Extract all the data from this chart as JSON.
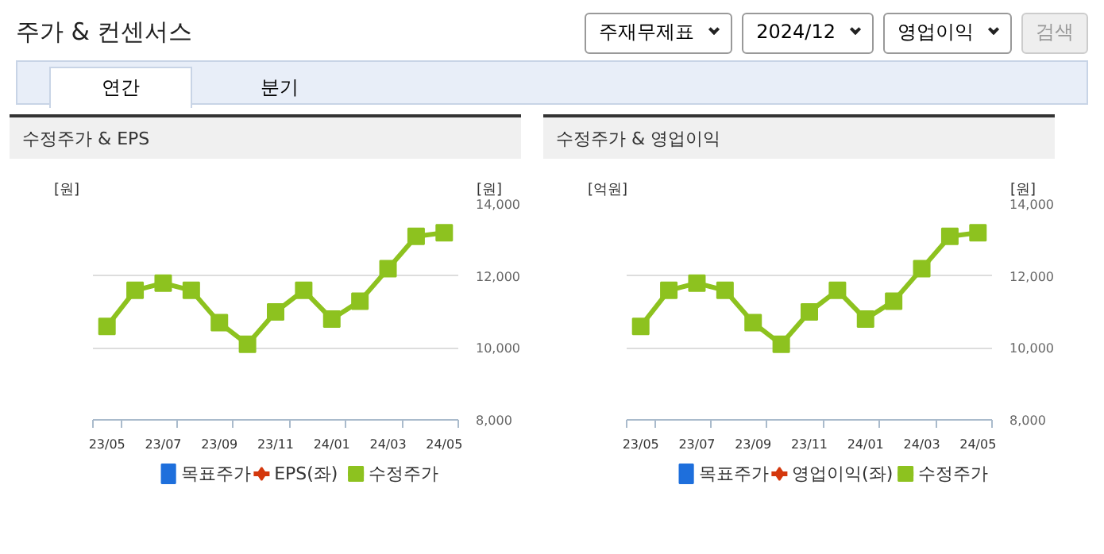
{
  "chart_data": [
    {
      "type": "line",
      "title": "수정주가 & EPS",
      "ylabel": "[원]",
      "y2label": "[원]",
      "annotations": [
        "주가 & 컨센서스",
        "주재무제표",
        "2024/12",
        "영업이익",
        "검색",
        "연간",
        "분기"
      ],
      "categories": [
        "23/05",
        null,
        "23/07",
        null,
        "23/09",
        null,
        "23/11",
        null,
        "24/01",
        null,
        "24/03",
        null,
        "24/05"
      ],
      "series": [
        {
          "name": "목표주가",
          "type": "bar",
          "color": "#1e6fdc",
          "values": [
            null,
            null,
            null,
            null,
            null,
            null,
            null,
            null,
            null,
            null,
            null,
            null,
            null
          ]
        },
        {
          "name": "EPS(좌)",
          "color": "#d4380d",
          "marker": "diamond",
          "values": [
            null,
            null,
            null,
            null,
            null,
            null,
            null,
            null,
            null,
            null,
            null,
            null,
            null
          ]
        },
        {
          "name": "수정주가",
          "color": "#8dc21f",
          "marker": "square",
          "axis": "y2",
          "values": [
            10600,
            11600,
            11800,
            11600,
            10700,
            10100,
            11000,
            11600,
            10800,
            11300,
            12200,
            13100,
            13200
          ]
        }
      ],
      "y2lim": [
        8000,
        14000
      ],
      "y2ticks": [
        {
          "value": 8000,
          "label": "8,000"
        },
        {
          "value": 10000,
          "label": "10,000"
        },
        {
          "value": 12000,
          "label": "12,000"
        },
        {
          "value": 14000,
          "label": "14,000"
        }
      ],
      "grid": "y",
      "legend": "bottom"
    },
    {
      "type": "line",
      "title": "수정주가 & 영업이익",
      "ylabel": "[억원]",
      "y2label": "[원]",
      "categories": [
        "23/05",
        null,
        "23/07",
        null,
        "23/09",
        null,
        "23/11",
        null,
        "24/01",
        null,
        "24/03",
        null,
        "24/05"
      ],
      "series": [
        {
          "name": "목표주가",
          "type": "bar",
          "color": "#1e6fdc",
          "values": [
            null,
            null,
            null,
            null,
            null,
            null,
            null,
            null,
            null,
            null,
            null,
            null,
            null
          ]
        },
        {
          "name": "영업이익(좌)",
          "color": "#d4380d",
          "marker": "diamond",
          "values": [
            null,
            null,
            null,
            null,
            null,
            null,
            null,
            null,
            null,
            null,
            null,
            null,
            null
          ]
        },
        {
          "name": "수정주가",
          "color": "#8dc21f",
          "marker": "square",
          "axis": "y2",
          "values": [
            10600,
            11600,
            11800,
            11600,
            10700,
            10100,
            11000,
            11600,
            10800,
            11300,
            12200,
            13100,
            13200
          ]
        }
      ],
      "y2lim": [
        8000,
        14000
      ],
      "y2ticks": [
        {
          "value": 8000,
          "label": "8,000"
        },
        {
          "value": 10000,
          "label": "10,000"
        },
        {
          "value": 12000,
          "label": "12,000"
        },
        {
          "value": 14000,
          "label": "14,000"
        }
      ],
      "grid": "y",
      "legend": "bottom"
    }
  ]
}
